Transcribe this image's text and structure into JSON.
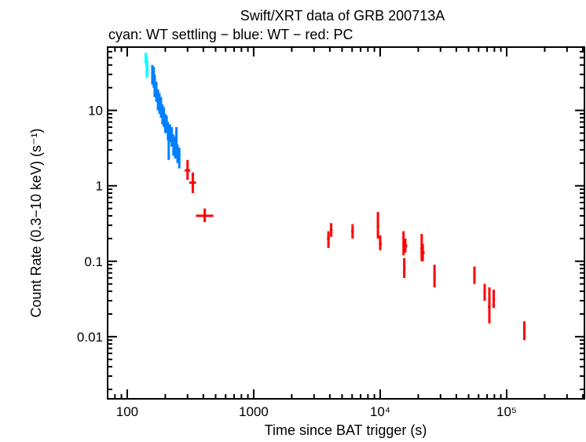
{
  "chart_data": {
    "type": "scatter",
    "title": "Swift/XRT data of GRB 200713A",
    "subtitle": "cyan: WT settling − blue: WT − red: PC",
    "xlabel": "Time since BAT trigger (s)",
    "ylabel": "Count Rate (0.3−10 keV) (s⁻¹)",
    "xscale": "log",
    "yscale": "log",
    "xlim": [
      70,
      412000
    ],
    "ylim": [
      0.0015,
      69
    ],
    "xticks": [
      {
        "v": 100,
        "label": "100"
      },
      {
        "v": 1000,
        "label": "1000"
      },
      {
        "v": 10000,
        "label": "10⁴"
      },
      {
        "v": 100000,
        "label": "10⁵"
      }
    ],
    "yticks": [
      {
        "v": 10,
        "label": "10"
      },
      {
        "v": 1,
        "label": "1"
      },
      {
        "v": 0.1,
        "label": "0.1"
      },
      {
        "v": 0.01,
        "label": "0.01"
      }
    ],
    "grid": false,
    "series": [
      {
        "color": "#00ffff",
        "points": [
          [
            140,
            50,
            42,
            58,
            138,
            142
          ],
          [
            142,
            45,
            38,
            52,
            140,
            144
          ],
          [
            144,
            38,
            30,
            46,
            142,
            146
          ],
          [
            143,
            32,
            27,
            38,
            141,
            145
          ]
        ]
      },
      {
        "color": "#0080ff",
        "points": [
          [
            158,
            30,
            22,
            40,
            156,
            160
          ],
          [
            162,
            28,
            20,
            38,
            160,
            164
          ],
          [
            165,
            22,
            15,
            30,
            163,
            167
          ],
          [
            170,
            18,
            13,
            24,
            168,
            172
          ],
          [
            175,
            14,
            10,
            19,
            173,
            177
          ],
          [
            180,
            13,
            9,
            17,
            178,
            182
          ],
          [
            185,
            11,
            8,
            15,
            183,
            187
          ],
          [
            190,
            9,
            6.5,
            12,
            188,
            192
          ],
          [
            195,
            8.5,
            6,
            11,
            193,
            197
          ],
          [
            200,
            7,
            5,
            9,
            198,
            202
          ],
          [
            205,
            6.5,
            5,
            8.5,
            203,
            207
          ],
          [
            210,
            5.5,
            4,
            7,
            208,
            212
          ],
          [
            213,
            4,
            2.2,
            6.5,
            209,
            217
          ],
          [
            218,
            5,
            3.8,
            6.5,
            216,
            220
          ],
          [
            225,
            4.5,
            3.3,
            6,
            223,
            227
          ],
          [
            232,
            3.5,
            2.5,
            4.8,
            230,
            234
          ],
          [
            240,
            3.2,
            2.3,
            4.5,
            238,
            242
          ],
          [
            245,
            4.5,
            3.3,
            6,
            241,
            249
          ],
          [
            250,
            2.7,
            2,
            3.5,
            247,
            253
          ],
          [
            258,
            2.4,
            1.7,
            3.2,
            254,
            262
          ]
        ]
      },
      {
        "color": "#ff0000",
        "points": [
          [
            300,
            1.6,
            1.2,
            2.2,
            285,
            315
          ],
          [
            330,
            1.1,
            0.8,
            1.5,
            310,
            350
          ],
          [
            410,
            0.4,
            0.33,
            0.5,
            350,
            480
          ],
          [
            3900,
            0.2,
            0.15,
            0.25,
            3800,
            4000
          ],
          [
            4100,
            0.26,
            0.21,
            0.32,
            4000,
            4200
          ],
          [
            6050,
            0.25,
            0.2,
            0.31,
            5900,
            6200
          ],
          [
            9600,
            0.29,
            0.2,
            0.45,
            9400,
            9800
          ],
          [
            10000,
            0.17,
            0.14,
            0.22,
            9800,
            10300
          ],
          [
            15300,
            0.165,
            0.12,
            0.25,
            15000,
            15600
          ],
          [
            15800,
            0.16,
            0.13,
            0.2,
            15600,
            16400
          ],
          [
            15500,
            0.082,
            0.06,
            0.11,
            15300,
            15900
          ],
          [
            21300,
            0.15,
            0.1,
            0.23,
            20800,
            21800
          ],
          [
            21700,
            0.13,
            0.1,
            0.17,
            21300,
            22500
          ],
          [
            26900,
            0.065,
            0.045,
            0.09,
            26400,
            27500
          ],
          [
            55600,
            0.066,
            0.05,
            0.085,
            55000,
            56500
          ],
          [
            67000,
            0.0385,
            0.03,
            0.05,
            65500,
            68500
          ],
          [
            73000,
            0.025,
            0.015,
            0.045,
            71000,
            74000
          ],
          [
            79000,
            0.031,
            0.024,
            0.042,
            77500,
            81000
          ],
          [
            138000,
            0.0118,
            0.009,
            0.016,
            136000,
            141000
          ]
        ]
      }
    ]
  }
}
